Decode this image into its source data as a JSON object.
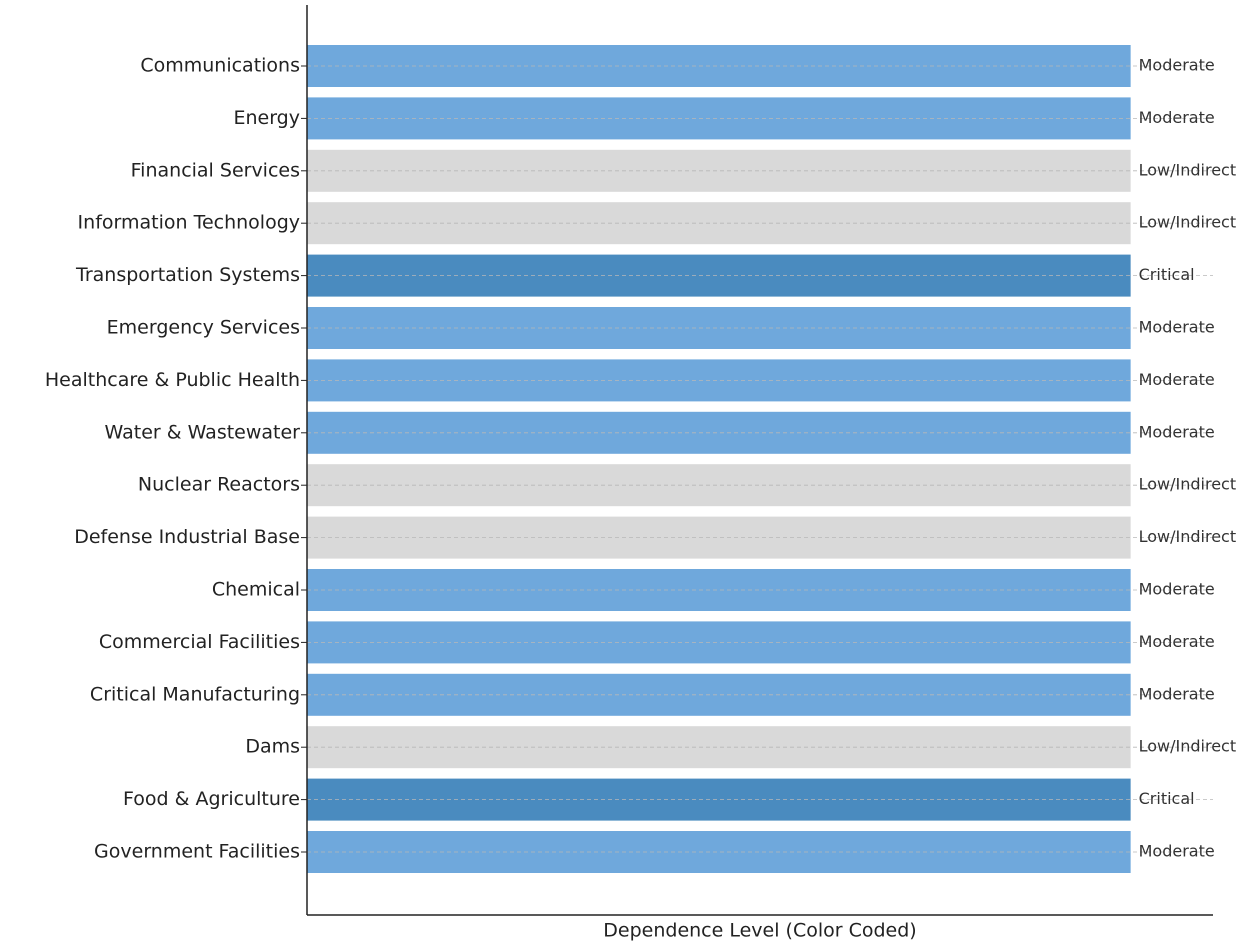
{
  "chart_data": {
    "type": "barh",
    "x_label": "Dependence Level (Color Coded)",
    "categories": [
      "Communications",
      "Energy",
      "Financial Services",
      "Information Technology",
      "Transportation Systems",
      "Emergency Services",
      "Healthcare & Public Health",
      "Water & Wastewater",
      "Nuclear Reactors",
      "Defense Industrial Base",
      "Chemical",
      "Commercial Facilities",
      "Critical Manufacturing",
      "Dams",
      "Food & Agriculture",
      "Government Facilities"
    ],
    "values": [
      1,
      1,
      1,
      1,
      1,
      1,
      1,
      1,
      1,
      1,
      1,
      1,
      1,
      1,
      1,
      1
    ],
    "labels": [
      "Moderate",
      "Moderate",
      "Low/Indirect",
      "Low/Indirect",
      "Critical",
      "Moderate",
      "Moderate",
      "Moderate",
      "Low/Indirect",
      "Low/Indirect",
      "Moderate",
      "Moderate",
      "Moderate",
      "Low/Indirect",
      "Critical",
      "Moderate"
    ],
    "colors": [
      "#6fa8dc",
      "#6fa8dc",
      "#d9d9d9",
      "#d9d9d9",
      "#4a8bbf",
      "#6fa8dc",
      "#6fa8dc",
      "#6fa8dc",
      "#d9d9d9",
      "#d9d9d9",
      "#6fa8dc",
      "#6fa8dc",
      "#6fa8dc",
      "#d9d9d9",
      "#4a8bbf",
      "#6fa8dc"
    ],
    "xlim": [
      0,
      1.1
    ],
    "grid": true
  }
}
